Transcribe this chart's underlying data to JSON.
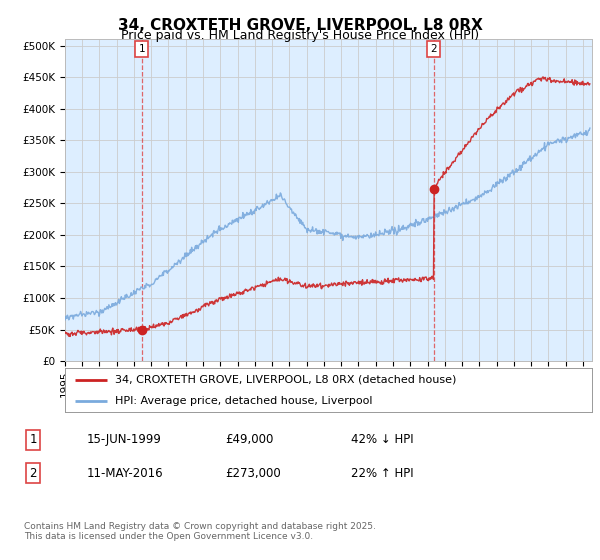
{
  "title": "34, CROXTETH GROVE, LIVERPOOL, L8 0RX",
  "subtitle": "Price paid vs. HM Land Registry's House Price Index (HPI)",
  "ylabel_ticks": [
    "£0",
    "£50K",
    "£100K",
    "£150K",
    "£200K",
    "£250K",
    "£300K",
    "£350K",
    "£400K",
    "£450K",
    "£500K"
  ],
  "ytick_values": [
    0,
    50000,
    100000,
    150000,
    200000,
    250000,
    300000,
    350000,
    400000,
    450000,
    500000
  ],
  "ylim": [
    0,
    510000
  ],
  "xlim_min": 1995.0,
  "xlim_max": 2025.5,
  "transaction1_date": 1999.45,
  "transaction1_price": 49000,
  "transaction1_label": "1",
  "transaction2_date": 2016.37,
  "transaction2_price": 273000,
  "transaction2_label": "2",
  "red_color": "#cc2222",
  "blue_color": "#7aaadd",
  "vline_color": "#dd4444",
  "grid_color": "#cccccc",
  "background_color": "#ffffff",
  "plot_bg_color": "#ddeeff",
  "legend_entry1": "34, CROXTETH GROVE, LIVERPOOL, L8 0RX (detached house)",
  "legend_entry2": "HPI: Average price, detached house, Liverpool",
  "table_row1": [
    "1",
    "15-JUN-1999",
    "£49,000",
    "42% ↓ HPI"
  ],
  "table_row2": [
    "2",
    "11-MAY-2016",
    "£273,000",
    "22% ↑ HPI"
  ],
  "footnote": "Contains HM Land Registry data © Crown copyright and database right 2025.\nThis data is licensed under the Open Government Licence v3.0.",
  "title_fontsize": 11,
  "subtitle_fontsize": 9,
  "tick_fontsize": 7.5,
  "legend_fontsize": 8,
  "table_fontsize": 8.5,
  "footnote_fontsize": 6.5
}
